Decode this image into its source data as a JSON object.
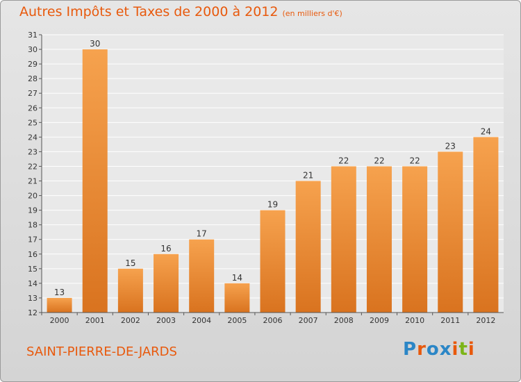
{
  "title": "Autres Impôts et Taxes de 2000 à 2012",
  "subtitle": "(en milliers d'€)",
  "commune": "SAINT-PIERRE-DE-JARDS",
  "logo": {
    "letters": [
      "P",
      "r",
      "o",
      "x",
      "i",
      "t",
      "i"
    ],
    "colors": [
      "#2b86c6",
      "#e8590c",
      "#2b86c6",
      "#2b86c6",
      "#e8590c",
      "#7cb518",
      "#e8590c"
    ]
  },
  "colors": {
    "bar_top": "#f6a24e",
    "bar_bottom": "#d9731f",
    "title": "#e8590c",
    "grid": "#ffffff"
  },
  "chart_data": {
    "type": "bar",
    "categories": [
      "2000",
      "2001",
      "2002",
      "2003",
      "2004",
      "2005",
      "2006",
      "2007",
      "2008",
      "2009",
      "2010",
      "2011",
      "2012"
    ],
    "values": [
      13,
      30,
      15,
      16,
      17,
      14,
      19,
      21,
      22,
      22,
      22,
      23,
      24
    ],
    "ylim": [
      12,
      31
    ],
    "yticks": [
      12,
      13,
      14,
      15,
      16,
      17,
      18,
      19,
      20,
      21,
      22,
      23,
      24,
      25,
      26,
      27,
      28,
      29,
      30,
      31
    ],
    "grid": true
  }
}
